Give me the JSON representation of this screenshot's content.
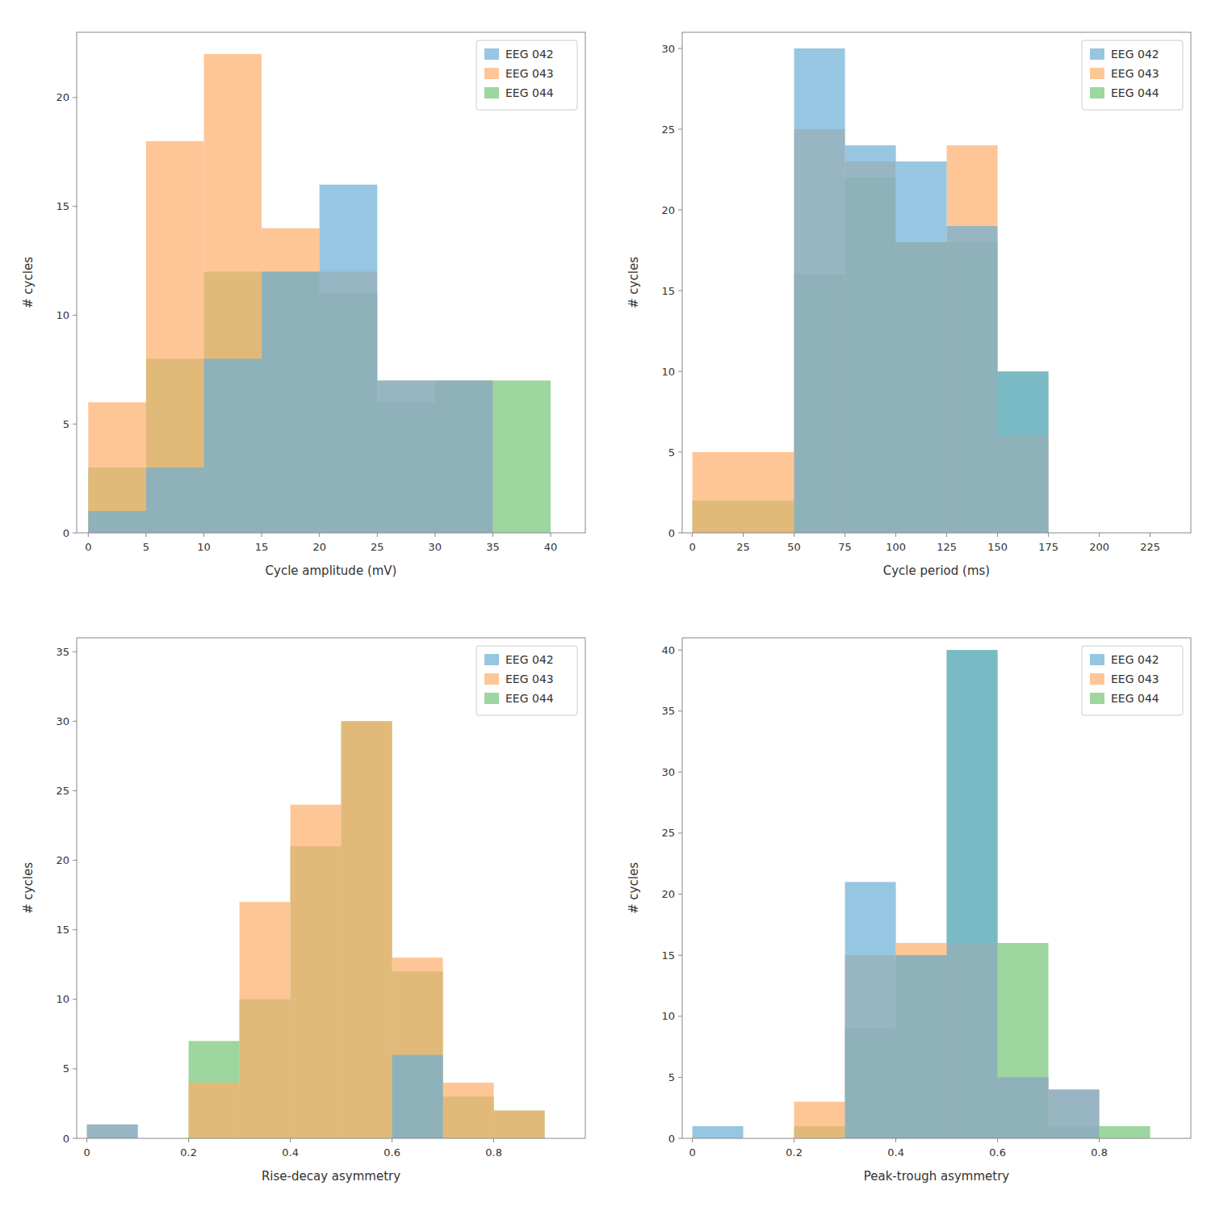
{
  "chart_data": [
    {
      "type": "histogram",
      "x_label": "Cycle amplitude (mV)",
      "y_label": "# cycles",
      "bins": [
        0,
        5,
        10,
        15,
        20,
        25,
        30,
        35,
        40
      ],
      "series": [
        {
          "name": "EEG 042",
          "color": "#6baed6",
          "values": [
            1,
            3,
            8,
            12,
            16,
            7,
            7,
            0
          ]
        },
        {
          "name": "EEG 043",
          "color": "#fdae6b",
          "values": [
            6,
            18,
            22,
            14,
            12,
            7,
            7,
            0
          ]
        },
        {
          "name": "EEG 044",
          "color": "#74c476",
          "values": [
            3,
            8,
            12,
            12,
            11,
            6,
            7,
            7
          ]
        }
      ],
      "xlim": [
        -1,
        43
      ],
      "xticks": [
        0,
        5,
        10,
        15,
        20,
        25,
        30,
        35,
        40
      ],
      "ylim": [
        0,
        23
      ],
      "yticks": [
        0,
        5,
        10,
        15,
        20
      ],
      "legend": "upper right",
      "grid": false
    },
    {
      "type": "histogram",
      "x_label": "Cycle period (ms)",
      "y_label": "# cycles",
      "bins": [
        0,
        50,
        75,
        100,
        125,
        150,
        175,
        225
      ],
      "series": [
        {
          "name": "EEG 042",
          "color": "#6baed6",
          "values": [
            0,
            30,
            24,
            23,
            19,
            10,
            0
          ]
        },
        {
          "name": "EEG 043",
          "color": "#fdae6b",
          "values": [
            5,
            25,
            23,
            18,
            24,
            6,
            0
          ]
        },
        {
          "name": "EEG 044",
          "color": "#74c476",
          "values": [
            2,
            16,
            22,
            18,
            18,
            10,
            0
          ]
        }
      ],
      "xlim": [
        -5,
        245
      ],
      "xticks": [
        0,
        25,
        50,
        75,
        100,
        125,
        150,
        175,
        200,
        225
      ],
      "ylim": [
        0,
        31
      ],
      "yticks": [
        0,
        5,
        10,
        15,
        20,
        25,
        30
      ],
      "legend": "upper right",
      "grid": false
    },
    {
      "type": "histogram",
      "x_label": "Rise-decay asymmetry",
      "y_label": "# cycles",
      "bins": [
        0.0,
        0.1,
        0.2,
        0.3,
        0.4,
        0.5,
        0.6,
        0.7,
        0.8,
        0.9
      ],
      "series": [
        {
          "name": "EEG 042",
          "color": "#6baed6",
          "values": [
            1,
            0,
            0,
            0,
            0,
            0,
            6,
            0,
            0
          ]
        },
        {
          "name": "EEG 043",
          "color": "#fdae6b",
          "values": [
            1,
            0,
            4,
            17,
            24,
            30,
            13,
            4,
            2
          ]
        },
        {
          "name": "EEG 044",
          "color": "#74c476",
          "values": [
            0,
            0,
            7,
            10,
            21,
            30,
            12,
            3,
            2
          ]
        }
      ],
      "xlim": [
        -0.02,
        0.98
      ],
      "xticks": [
        0,
        0.2,
        0.4,
        0.6,
        0.8
      ],
      "ylim": [
        0,
        36
      ],
      "yticks": [
        0,
        5,
        10,
        15,
        20,
        25,
        30,
        35
      ],
      "legend": "upper right",
      "grid": false
    },
    {
      "type": "histogram",
      "x_label": "Peak-trough asymmetry",
      "y_label": "# cycles",
      "bins": [
        0.0,
        0.1,
        0.2,
        0.3,
        0.4,
        0.5,
        0.6,
        0.7,
        0.8,
        0.9
      ],
      "series": [
        {
          "name": "EEG 042",
          "color": "#6baed6",
          "values": [
            1,
            0,
            0,
            21,
            15,
            40,
            5,
            4,
            0
          ]
        },
        {
          "name": "EEG 043",
          "color": "#fdae6b",
          "values": [
            0,
            0,
            3,
            15,
            16,
            16,
            5,
            4,
            0
          ]
        },
        {
          "name": "EEG 044",
          "color": "#74c476",
          "values": [
            0,
            0,
            1,
            9,
            15,
            40,
            16,
            1,
            1
          ]
        }
      ],
      "xlim": [
        -0.02,
        0.98
      ],
      "xticks": [
        0,
        0.2,
        0.4,
        0.6,
        0.8
      ],
      "ylim": [
        0,
        41
      ],
      "yticks": [
        0,
        5,
        10,
        15,
        20,
        25,
        30,
        35,
        40
      ],
      "legend": "upper right",
      "grid": false
    }
  ]
}
